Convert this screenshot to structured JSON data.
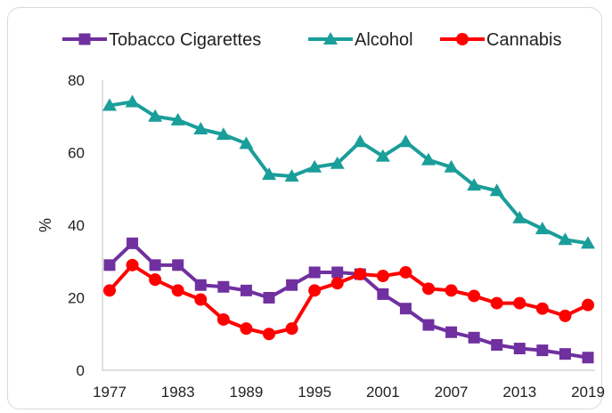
{
  "chart_data": {
    "type": "line",
    "title": "",
    "xlabel": "",
    "ylabel": "%",
    "ylim": [
      0,
      80
    ],
    "yticks": [
      0,
      20,
      40,
      60,
      80
    ],
    "xlim": [
      1977,
      2019
    ],
    "xtick_labels": [
      "1977",
      "1983",
      "1989",
      "1995",
      "2001",
      "2007",
      "2013",
      "2019"
    ],
    "grid": false,
    "legend_position": "top",
    "x": [
      1977,
      1979,
      1981,
      1983,
      1985,
      1987,
      1989,
      1991,
      1993,
      1995,
      1997,
      1999,
      2001,
      2003,
      2005,
      2007,
      2009,
      2011,
      2013,
      2015,
      2017,
      2019
    ],
    "series": [
      {
        "name": "Tobacco Cigarettes",
        "color": "#7030a0",
        "marker": "square",
        "values": [
          29,
          35,
          29,
          29,
          23.5,
          23,
          22,
          20,
          23.5,
          27,
          27,
          26.5,
          21,
          17,
          12.5,
          10.5,
          9,
          7,
          6,
          5.5,
          4.5,
          3.5
        ]
      },
      {
        "name": "Alcohol",
        "color": "#1a9e9a",
        "marker": "triangle",
        "values": [
          73,
          74,
          70,
          69,
          66.5,
          65,
          62.5,
          54,
          53.5,
          56,
          57,
          63,
          59,
          63,
          58,
          56,
          51,
          49.5,
          42,
          39,
          36,
          35
        ]
      },
      {
        "name": "Cannabis",
        "color": "#ff0000",
        "marker": "circle",
        "values": [
          22,
          29,
          25,
          22,
          19.5,
          14,
          11.5,
          10,
          11.5,
          22,
          24,
          26.5,
          26,
          27,
          22.5,
          22,
          20.5,
          18.5,
          18.5,
          17,
          15,
          18
        ]
      }
    ]
  }
}
